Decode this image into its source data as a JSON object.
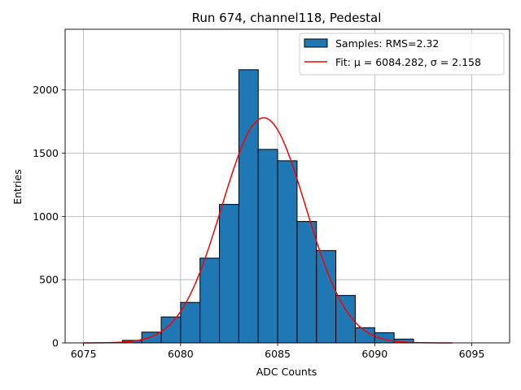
{
  "chart_data": {
    "type": "bar",
    "title": "Run 674, channel118, Pedestal",
    "xlabel": "ADC Counts",
    "ylabel": "Entries",
    "xlim": [
      6074.05,
      6096.95
    ],
    "ylim": [
      0,
      2480
    ],
    "xticks": [
      6075,
      6080,
      6085,
      6090,
      6095
    ],
    "yticks": [
      0,
      500,
      1000,
      1500,
      2000
    ],
    "grid": true,
    "legend_position": "top-right",
    "bin_width": 1,
    "bins": [
      {
        "left": 6077,
        "value": 20
      },
      {
        "left": 6078,
        "value": 85
      },
      {
        "left": 6079,
        "value": 205
      },
      {
        "left": 6080,
        "value": 320
      },
      {
        "left": 6081,
        "value": 670
      },
      {
        "left": 6082,
        "value": 1095
      },
      {
        "left": 6083,
        "value": 2160
      },
      {
        "left": 6084,
        "value": 1530
      },
      {
        "left": 6085,
        "value": 1440
      },
      {
        "left": 6086,
        "value": 960
      },
      {
        "left": 6087,
        "value": 730
      },
      {
        "left": 6088,
        "value": 375
      },
      {
        "left": 6089,
        "value": 120
      },
      {
        "left": 6090,
        "value": 80
      },
      {
        "left": 6091,
        "value": 30
      }
    ],
    "fit": {
      "mu": 6084.282,
      "sigma": 2.158,
      "amplitude": 1780,
      "x_range": [
        6075,
        6094
      ]
    },
    "series": [
      {
        "name": "Samples: RMS=2.32",
        "kind": "histogram",
        "color": "#1f77b4"
      },
      {
        "name": "Fit: μ = 6084.282, σ = 2.158",
        "kind": "line",
        "color": "#ff0000"
      }
    ]
  }
}
